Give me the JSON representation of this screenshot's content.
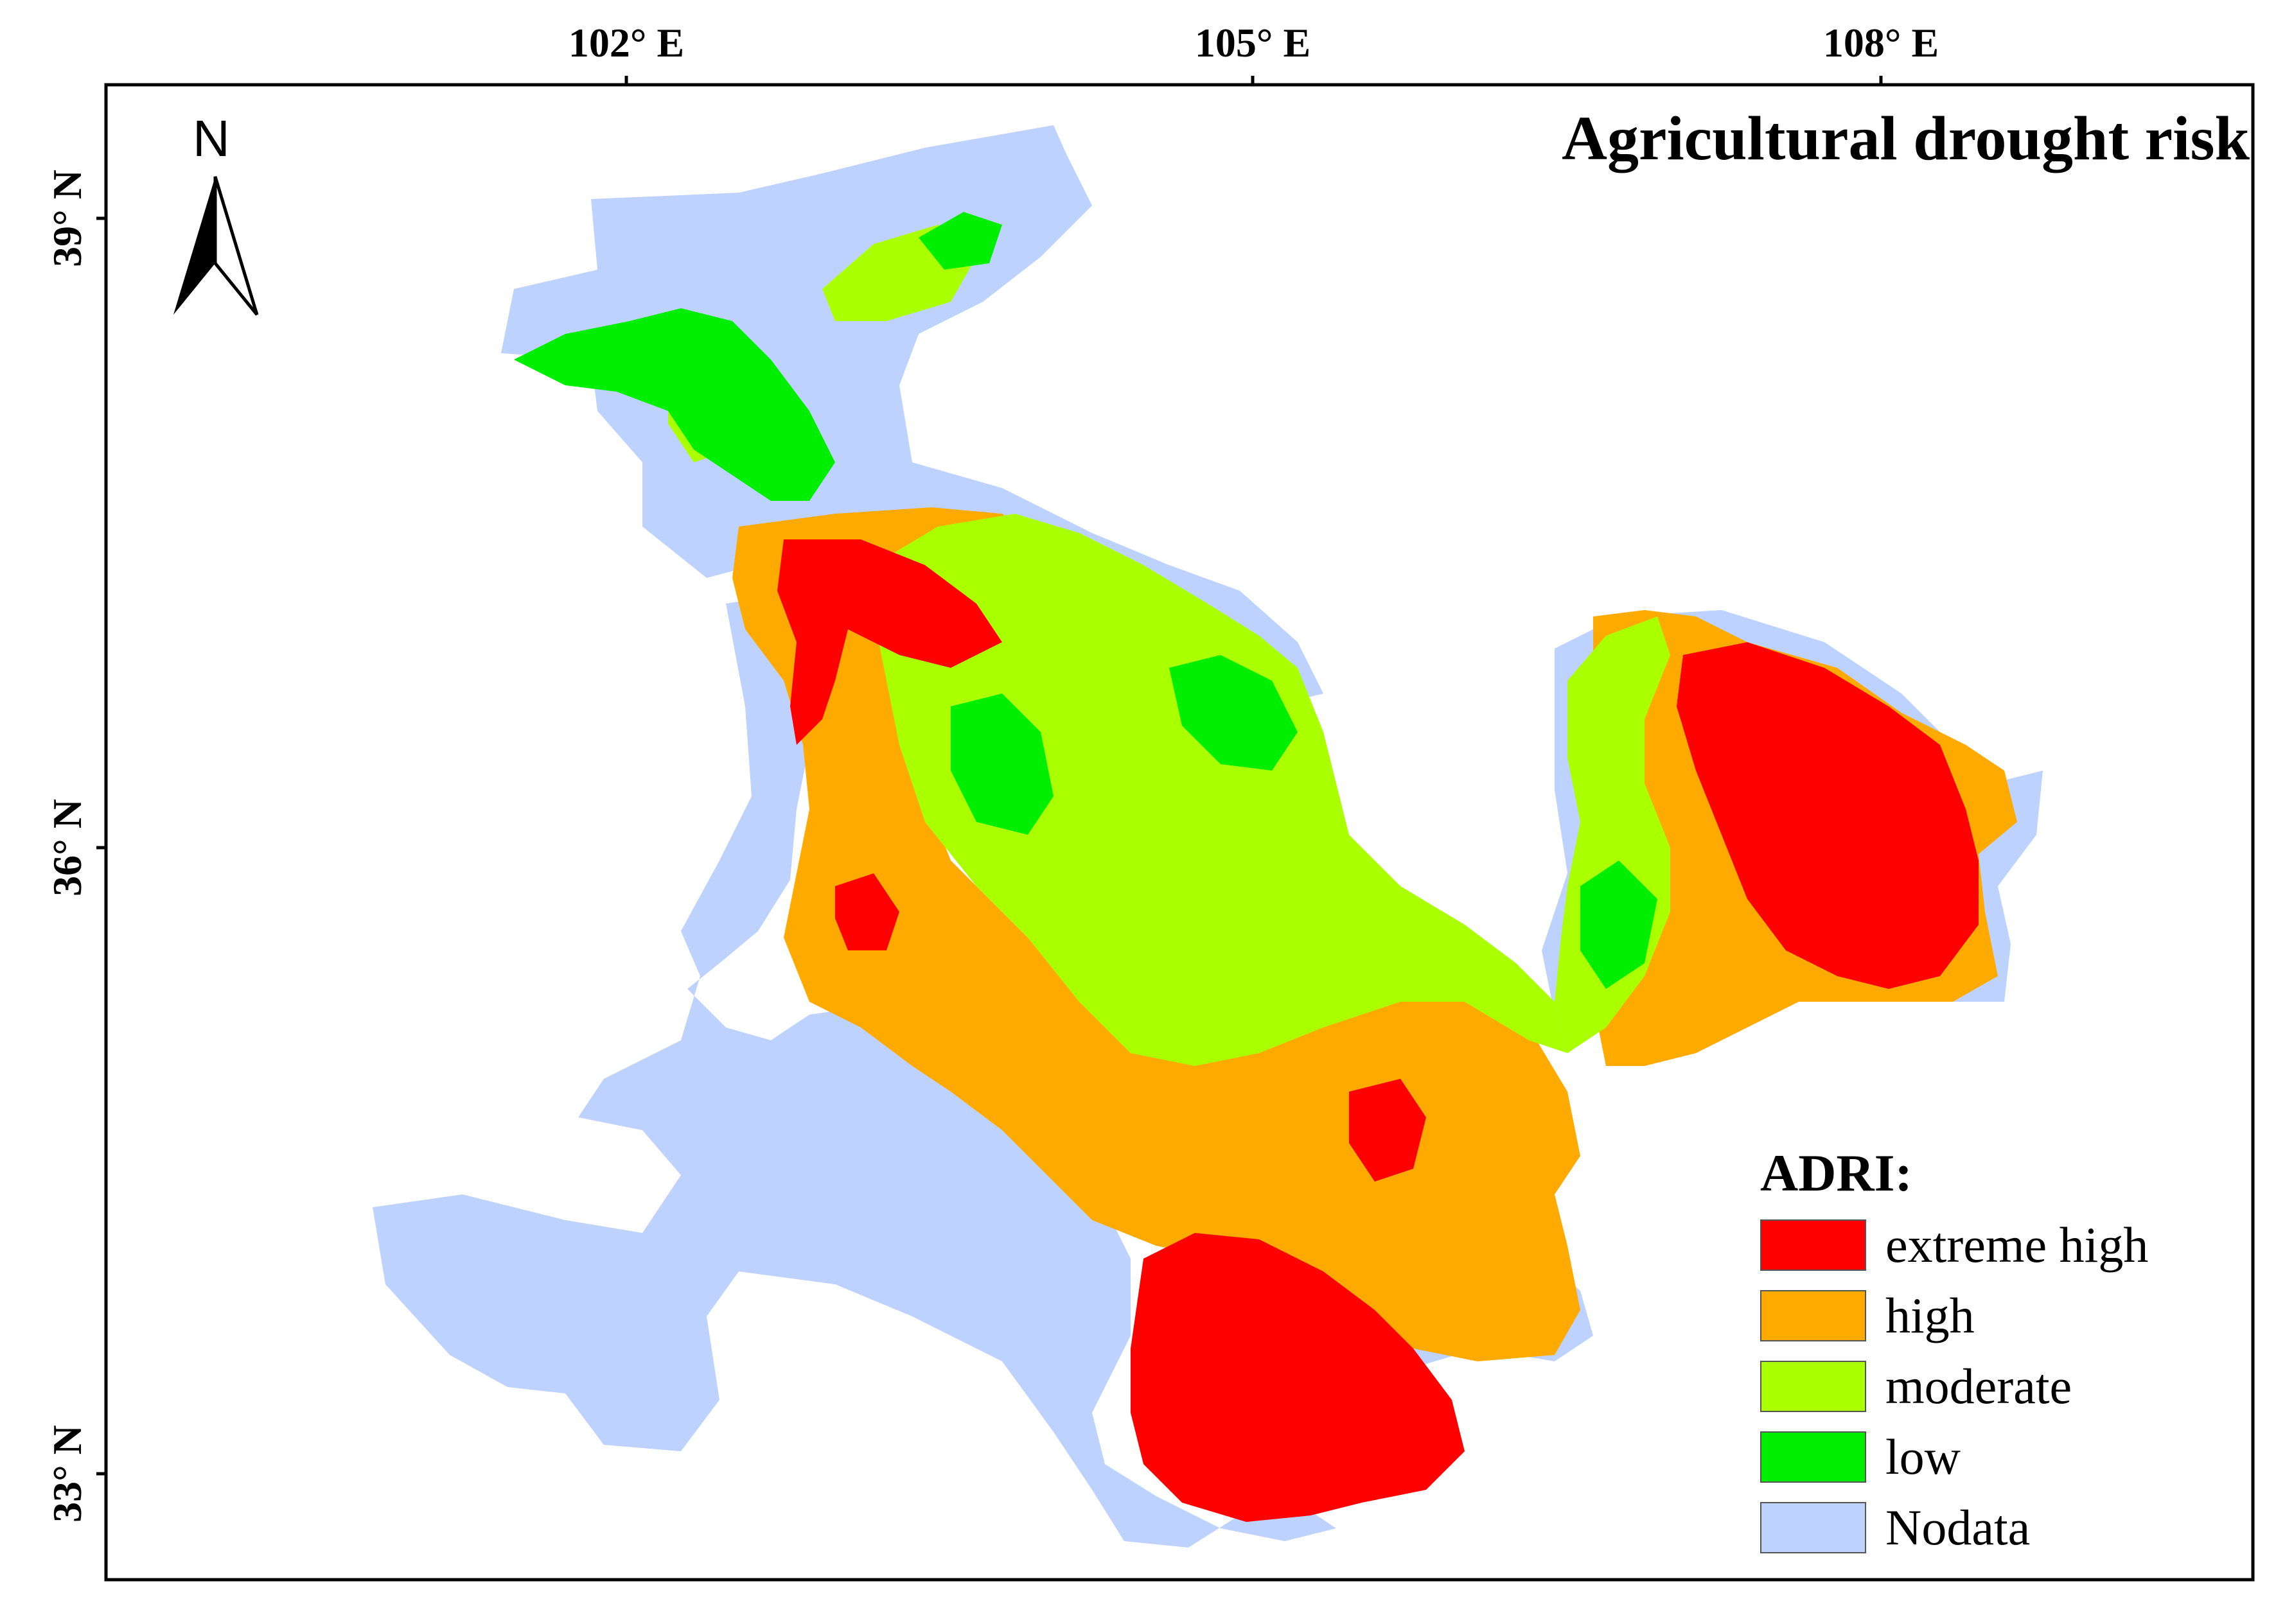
{
  "map": {
    "title": "Agricultural drought risk",
    "north_label": "N",
    "lon_ticks": [
      {
        "label": "102° E"
      },
      {
        "label": "105° E"
      },
      {
        "label": "108° E"
      }
    ],
    "lat_ticks": [
      {
        "label": "39° N"
      },
      {
        "label": "36° N"
      },
      {
        "label": "33° N"
      }
    ],
    "legend": {
      "title": "ADRI:",
      "items": [
        {
          "label": "extreme high",
          "color": "#ff0000"
        },
        {
          "label": "high",
          "color": "#ffaa00"
        },
        {
          "label": "moderate",
          "color": "#aaff00"
        },
        {
          "label": "low",
          "color": "#00ee00"
        },
        {
          "label": "Nodata",
          "color": "#bed2ff"
        }
      ]
    }
  }
}
